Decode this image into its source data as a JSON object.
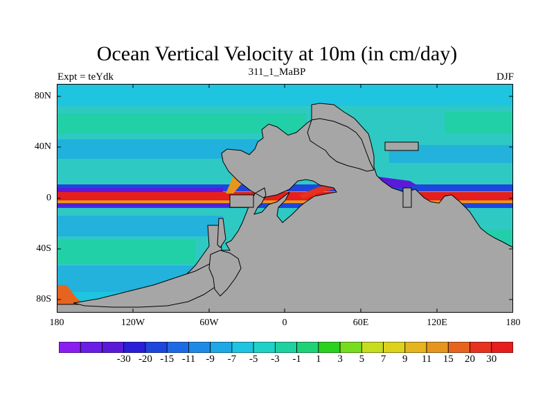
{
  "title": "Ocean Vertical Velocity at 10m (in cm/day)",
  "subtitle_left": "Expt = teYdk",
  "subtitle_center": "311_1_MaBP",
  "subtitle_right": "DJF",
  "land_color": "#a6a6a6",
  "ocean_background_color": "#2fc9c4",
  "y_ticks": [
    "80N",
    "40N",
    "0",
    "40S",
    "80S"
  ],
  "x_ticks": [
    "180",
    "120W",
    "60W",
    "0",
    "60E",
    "120E",
    "180"
  ],
  "colorbar": {
    "colors": [
      "#8a1ef0",
      "#6a1ee6",
      "#5a1ad8",
      "#2a1ed8",
      "#1e46dc",
      "#1e6ae6",
      "#1e8ae6",
      "#1ea8e6",
      "#1ec4e0",
      "#1ed2c8",
      "#1ed2a0",
      "#1ed278",
      "#28d21e",
      "#78dc1e",
      "#c8dc1e",
      "#dcd21e",
      "#e6b41e",
      "#e6961e",
      "#e6641e",
      "#e6321e",
      "#e61e1e"
    ],
    "labels": [
      "-30",
      "-20",
      "-15",
      "-11",
      "-9",
      "-7",
      "-5",
      "-3",
      "-1",
      "1",
      "3",
      "5",
      "7",
      "9",
      "11",
      "15",
      "20",
      "30"
    ]
  }
}
